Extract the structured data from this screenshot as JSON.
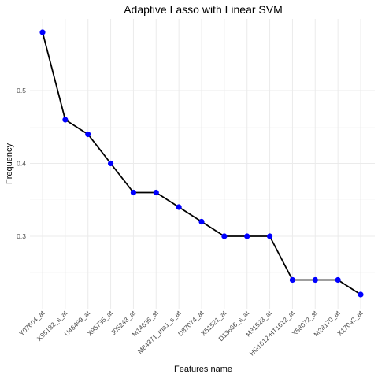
{
  "chart_data": {
    "type": "line",
    "title": "Adaptive Lasso with Linear SVM",
    "xlabel": "Features name",
    "ylabel": "Frequency",
    "categories": [
      "Y07604_at",
      "X95182_s_at",
      "U46499_at",
      "X95735_at",
      "J05243_at",
      "M14636_at",
      "M84371_rna1_s_at",
      "D87074_at",
      "X51521_at",
      "D13666_s_at",
      "M31523_at",
      "HG1612-HT1612_at",
      "X58072_at",
      "M28170_at",
      "X17042_at"
    ],
    "series": [
      {
        "values": [
          0.58,
          0.46,
          0.44,
          0.4,
          0.36,
          0.36,
          0.34,
          0.32,
          0.3,
          0.3,
          0.3,
          0.24,
          0.24,
          0.24,
          0.22
        ]
      }
    ],
    "y_ticks": [
      "0.3",
      "0.4",
      "0.5"
    ],
    "y_tick_values": [
      0.3,
      0.4,
      0.5
    ],
    "ylim": [
      0.22,
      0.58
    ],
    "grid": true,
    "line_color": "#000000",
    "point_color": "#0000ff"
  }
}
